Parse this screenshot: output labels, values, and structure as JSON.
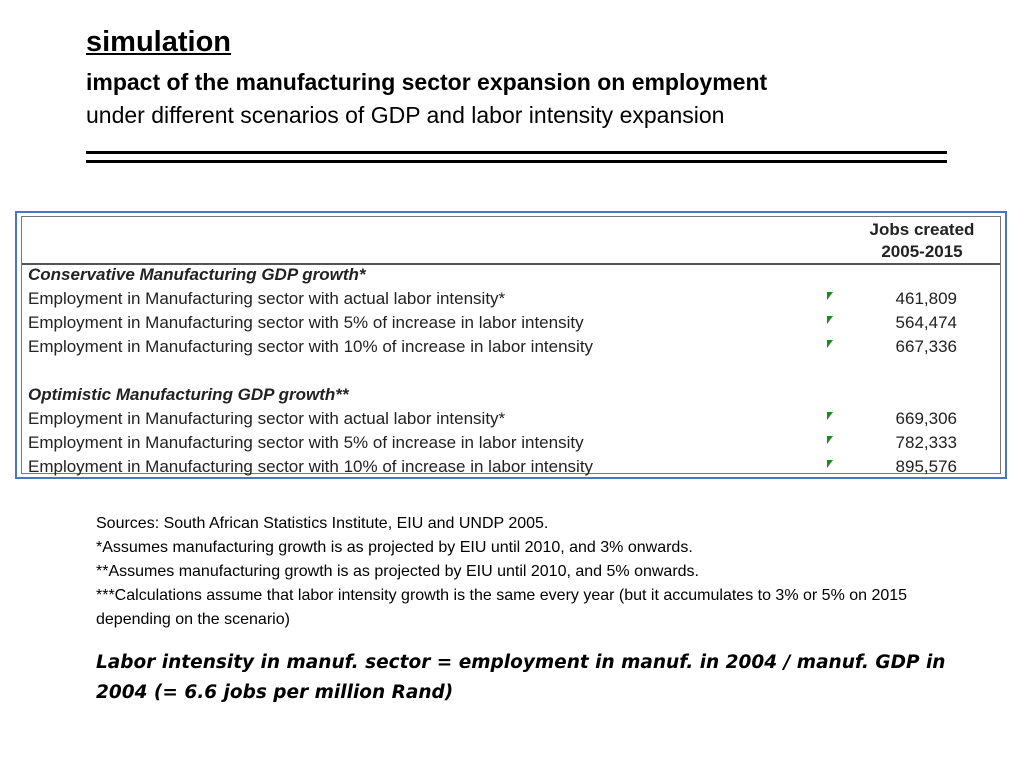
{
  "header": {
    "title": "simulation",
    "subtitle": "impact of the manufacturing sector expansion on employment",
    "subtitle2": "under different scenarios of GDP and labor intensity expansion"
  },
  "table": {
    "column_header": [
      "Jobs created",
      "2005-2015"
    ],
    "sections": [
      {
        "title": "Conservative Manufacturing GDP growth*",
        "rows": [
          {
            "label": "Employment in Manufacturing sector with actual labor intensity*",
            "value": "461,809"
          },
          {
            "label": "Employment in Manufacturing sector with 5% of increase in labor intensity",
            "value": "564,474"
          },
          {
            "label": "Employment in Manufacturing sector with 10% of increase in labor intensity",
            "value": "667,336"
          }
        ]
      },
      {
        "title": "Optimistic Manufacturing GDP growth**",
        "rows": [
          {
            "label": "Employment in Manufacturing sector with actual labor intensity*",
            "value": "669,306"
          },
          {
            "label": "Employment in Manufacturing sector with 5% of increase in labor intensity",
            "value": "782,333"
          },
          {
            "label": "Employment in Manufacturing sector with 10% of increase in labor intensity",
            "value": "895,576"
          }
        ]
      }
    ]
  },
  "notes": [
    "Sources: South African Statistics Institute, EIU and UNDP 2005.",
    "*Assumes manufacturing growth is as projected by EIU until 2010, and 3% onwards.",
    "**Assumes manufacturing growth is as projected by EIU until 2010, and 5% onwards.",
    "***Calculations assume that labor intensity growth is the same every year (but it accumulates to 3% or 5% on 2015 depending on the scenario)"
  ],
  "definition": "Labor intensity in manuf. sector = employment in manuf. in 2004 / manuf. GDP in 2004 (= 6.6 jobs per million Rand)",
  "colors": {
    "frame": "#4a74c6",
    "flag": "#1d8a1d"
  }
}
